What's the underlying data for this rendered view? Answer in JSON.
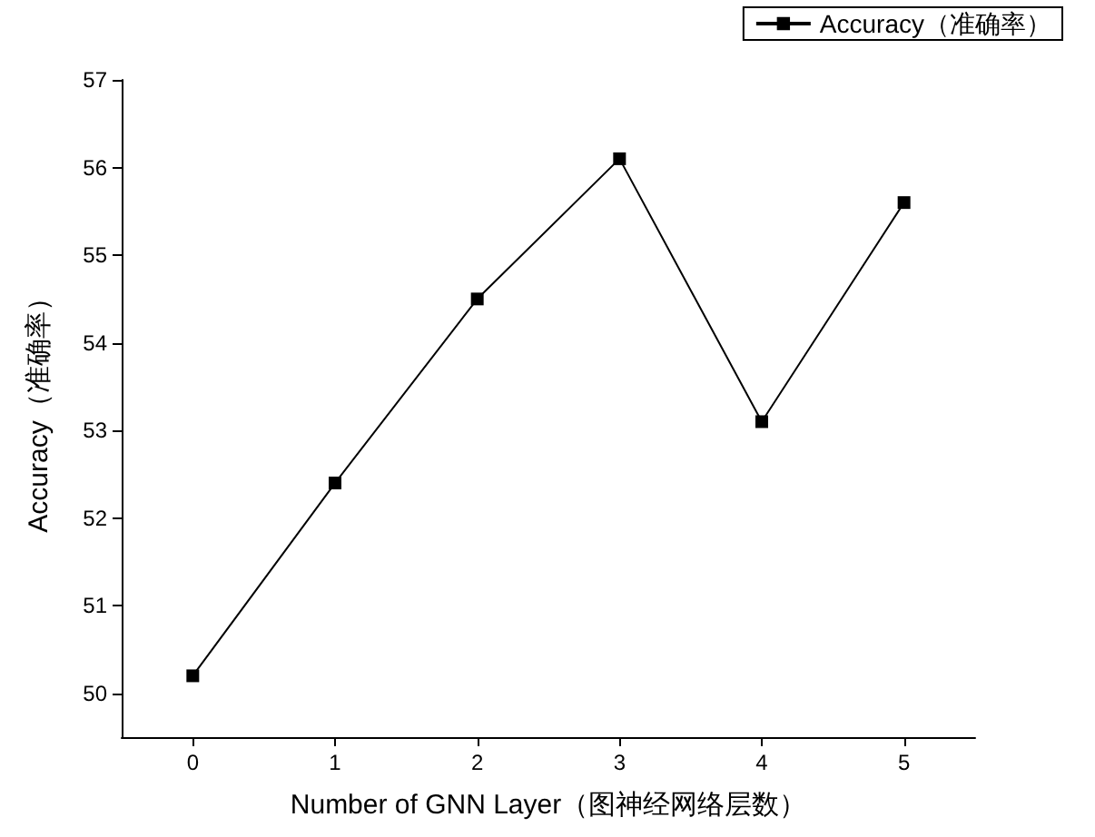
{
  "chart_data": {
    "type": "line",
    "xlabel": "Number of GNN Layer（图神经网络层数）",
    "ylabel": "Accuracy（准确率）",
    "x": [
      0,
      1,
      2,
      3,
      4,
      5
    ],
    "series": [
      {
        "name": "Accuracy（准确率）",
        "color": "#000000",
        "values": [
          50.2,
          52.4,
          54.5,
          56.1,
          53.1,
          55.6
        ]
      }
    ],
    "xlim": [
      -0.5,
      5.5
    ],
    "xticks": [
      0,
      1,
      2,
      3,
      4,
      5
    ],
    "ylim": [
      49.5,
      57
    ],
    "yticks": [
      50,
      51,
      52,
      53,
      54,
      55,
      56,
      57
    ],
    "grid": false,
    "legend": "top right",
    "marker": "square",
    "line_style": "solid"
  }
}
